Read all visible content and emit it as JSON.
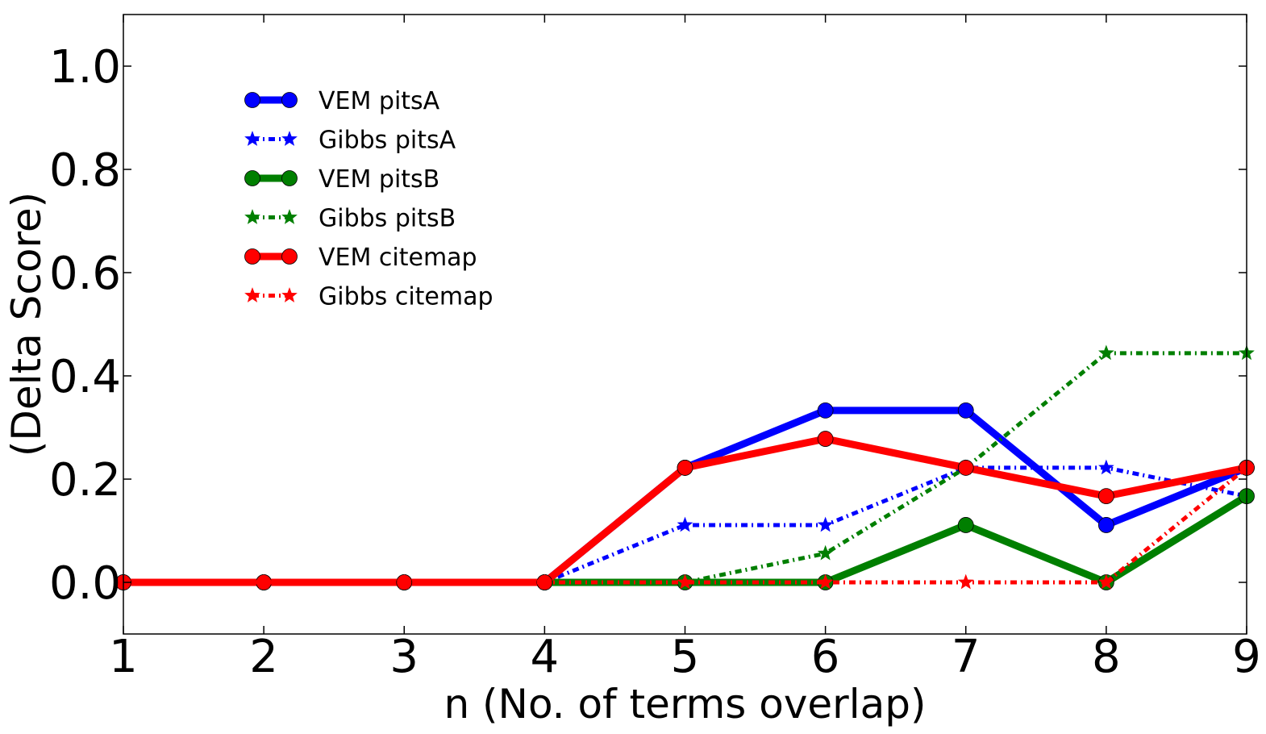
{
  "chart_data": {
    "type": "line",
    "title": "",
    "xlabel": "n (No. of terms overlap)",
    "ylabel": "(Delta Score)",
    "x": [
      1,
      2,
      3,
      4,
      5,
      6,
      7,
      8,
      9
    ],
    "xlim": [
      1,
      9
    ],
    "ylim": [
      -0.1,
      1.1
    ],
    "xticks": [
      1,
      2,
      3,
      4,
      5,
      6,
      7,
      8,
      9
    ],
    "yticks": [
      0.0,
      0.2,
      0.4,
      0.6,
      0.8,
      1.0
    ],
    "xtick_labels": [
      "1",
      "2",
      "3",
      "4",
      "5",
      "6",
      "7",
      "8",
      "9"
    ],
    "ytick_labels": [
      "0.0",
      "0.2",
      "0.4",
      "0.6",
      "0.8",
      "1.0"
    ],
    "grid": false,
    "legend_position": "upper-left",
    "series": [
      {
        "name": "VEM pitsA",
        "color": "#0000ff",
        "style": "solid",
        "marker": "circle",
        "values": [
          0,
          0,
          0,
          0,
          0.222,
          0.333,
          0.333,
          0.111,
          0.222
        ]
      },
      {
        "name": "Gibbs pitsA",
        "color": "#0000ff",
        "style": "dashdot",
        "marker": "star",
        "values": [
          0,
          0,
          0,
          0,
          0.111,
          0.111,
          0.222,
          0.222,
          0.167
        ]
      },
      {
        "name": "VEM pitsB",
        "color": "#007f00",
        "style": "solid",
        "marker": "circle",
        "values": [
          0,
          0,
          0,
          0,
          0,
          0,
          0.111,
          0,
          0.167
        ]
      },
      {
        "name": "Gibbs pitsB",
        "color": "#007f00",
        "style": "dashdot",
        "marker": "star",
        "values": [
          0,
          0,
          0,
          0,
          0,
          0.056,
          0.222,
          0.444,
          0.444
        ]
      },
      {
        "name": "VEM citemap",
        "color": "#ff0000",
        "style": "solid",
        "marker": "circle",
        "values": [
          0,
          0,
          0,
          0,
          0.222,
          0.278,
          0.222,
          0.167,
          0.222
        ]
      },
      {
        "name": "Gibbs citemap",
        "color": "#ff0000",
        "style": "dashdot",
        "marker": "star",
        "values": [
          0,
          0,
          0,
          0,
          0,
          0,
          0,
          0,
          0.222
        ]
      }
    ]
  }
}
